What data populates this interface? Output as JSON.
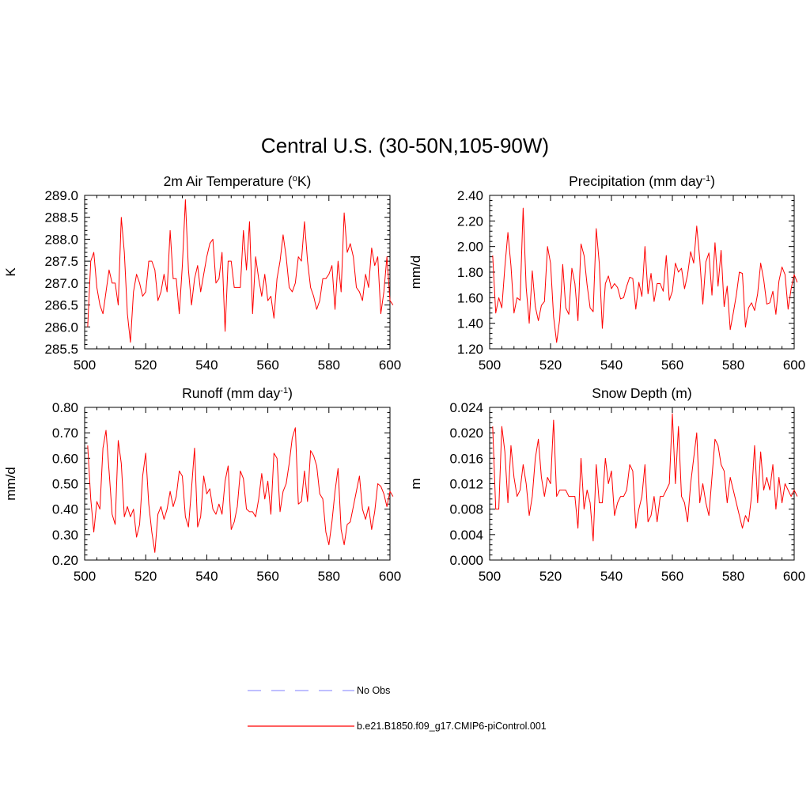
{
  "title": "Central U.S. (30-50N,105-90W)",
  "colors": {
    "model_line": "#ff0000",
    "obs_line": "#9999ff",
    "axis": "#000000"
  },
  "legend": {
    "placement": "bottom-center",
    "entries": [
      {
        "label": "No Obs",
        "style": "dashed",
        "color": "#9999ff"
      },
      {
        "label": "b.e21.B1850.f09_g17.CMIP6-piControl.001",
        "style": "solid",
        "color": "#ff0000"
      }
    ]
  },
  "chart_data": [
    {
      "type": "line",
      "title": "2m Air Temperature",
      "title_unit_base": "K",
      "title_unit_sup": "o",
      "title_unit_prefix": " (",
      "title_unit_suffix": ")",
      "xlabel": "",
      "ylabel": "K",
      "xlim": [
        500,
        600
      ],
      "ylim": [
        285.5,
        289.0
      ],
      "xticks": [
        500,
        520,
        540,
        560,
        580,
        600
      ],
      "yticks": [
        285.5,
        286.0,
        286.5,
        287.0,
        287.5,
        288.0,
        288.5,
        289.0
      ],
      "ytick_labels": [
        "285.5",
        "286.0",
        "286.5",
        "287.0",
        "287.5",
        "288.0",
        "288.5",
        "289.0"
      ],
      "series": [
        {
          "name": "b.e21.B1850.f09_g17.CMIP6-piControl.001",
          "x_start": 501,
          "values": [
            286.0,
            287.5,
            287.7,
            286.9,
            286.5,
            286.3,
            286.8,
            287.3,
            287.0,
            287.0,
            286.5,
            288.5,
            287.7,
            286.3,
            285.65,
            286.8,
            287.2,
            287.0,
            286.7,
            286.8,
            287.5,
            287.5,
            287.3,
            286.6,
            286.8,
            287.2,
            286.8,
            288.2,
            287.1,
            287.1,
            286.3,
            287.4,
            288.9,
            287.3,
            286.5,
            287.1,
            287.4,
            286.8,
            287.2,
            287.6,
            287.9,
            288.0,
            287.0,
            287.1,
            287.7,
            285.9,
            287.5,
            287.5,
            286.9,
            286.9,
            286.9,
            288.2,
            287.3,
            288.4,
            286.3,
            287.6,
            287.1,
            286.7,
            287.2,
            286.6,
            286.7,
            286.2,
            287.1,
            287.5,
            288.1,
            287.6,
            286.9,
            286.8,
            287.0,
            287.6,
            287.5,
            288.4,
            287.5,
            286.9,
            286.7,
            286.4,
            286.6,
            287.1,
            287.1,
            287.2,
            287.4,
            286.4,
            287.5,
            286.8,
            288.6,
            287.7,
            287.9,
            287.6,
            286.9,
            286.8,
            286.6,
            287.2,
            286.9,
            287.8,
            287.4,
            287.6,
            286.3,
            286.8,
            287.6,
            286.6,
            286.5
          ]
        }
      ]
    },
    {
      "type": "line",
      "title": "Precipitation",
      "title_unit_base": "mm day",
      "title_unit_sup": "-1",
      "title_unit_prefix": " (",
      "title_unit_suffix": ")",
      "xlabel": "",
      "ylabel": "mm/d",
      "xlim": [
        500,
        600
      ],
      "ylim": [
        1.2,
        2.4
      ],
      "xticks": [
        500,
        520,
        540,
        560,
        580,
        600
      ],
      "yticks": [
        1.2,
        1.4,
        1.6,
        1.8,
        2.0,
        2.2,
        2.4
      ],
      "ytick_labels": [
        "1.20",
        "1.40",
        "1.60",
        "1.80",
        "2.00",
        "2.20",
        "2.40"
      ],
      "series": [
        {
          "name": "b.e21.B1850.f09_g17.CMIP6-piControl.001",
          "x_start": 501,
          "values": [
            1.93,
            1.48,
            1.6,
            1.52,
            1.84,
            2.11,
            1.85,
            1.48,
            1.6,
            1.58,
            2.3,
            1.68,
            1.4,
            1.81,
            1.53,
            1.42,
            1.54,
            1.57,
            2.0,
            1.87,
            1.45,
            1.25,
            1.43,
            1.86,
            1.52,
            1.47,
            1.83,
            1.71,
            1.42,
            2.02,
            1.93,
            1.7,
            1.52,
            1.49,
            2.14,
            1.87,
            1.36,
            1.71,
            1.77,
            1.67,
            1.71,
            1.68,
            1.59,
            1.6,
            1.69,
            1.76,
            1.75,
            1.51,
            1.72,
            1.61,
            2.0,
            1.63,
            1.79,
            1.57,
            1.71,
            1.71,
            1.65,
            1.93,
            1.58,
            1.65,
            1.87,
            1.8,
            1.83,
            1.67,
            1.78,
            1.96,
            1.87,
            2.16,
            1.9,
            1.55,
            1.88,
            1.95,
            1.62,
            2.03,
            1.69,
            1.97,
            1.53,
            1.69,
            1.35,
            1.48,
            1.62,
            1.8,
            1.79,
            1.37,
            1.52,
            1.56,
            1.5,
            1.63,
            1.87,
            1.74,
            1.55,
            1.56,
            1.65,
            1.47,
            1.73,
            1.84,
            1.78,
            1.51,
            1.67,
            1.78,
            1.72
          ]
        }
      ]
    },
    {
      "type": "line",
      "title": "Runoff",
      "title_unit_base": "mm day",
      "title_unit_sup": "-1",
      "title_unit_prefix": " (",
      "title_unit_suffix": ")",
      "xlabel": "",
      "ylabel": "mm/d",
      "xlim": [
        500,
        600
      ],
      "ylim": [
        0.2,
        0.8
      ],
      "xticks": [
        500,
        520,
        540,
        560,
        580,
        600
      ],
      "yticks": [
        0.2,
        0.3,
        0.4,
        0.5,
        0.6,
        0.7,
        0.8
      ],
      "ytick_labels": [
        "0.20",
        "0.30",
        "0.40",
        "0.50",
        "0.60",
        "0.70",
        "0.80"
      ],
      "series": [
        {
          "name": "b.e21.B1850.f09_g17.CMIP6-piControl.001",
          "x_start": 501,
          "values": [
            0.65,
            0.44,
            0.31,
            0.43,
            0.4,
            0.64,
            0.71,
            0.55,
            0.38,
            0.34,
            0.67,
            0.58,
            0.37,
            0.41,
            0.37,
            0.4,
            0.29,
            0.34,
            0.53,
            0.62,
            0.42,
            0.31,
            0.23,
            0.38,
            0.41,
            0.36,
            0.4,
            0.47,
            0.41,
            0.45,
            0.55,
            0.53,
            0.37,
            0.33,
            0.48,
            0.64,
            0.33,
            0.37,
            0.53,
            0.46,
            0.48,
            0.4,
            0.38,
            0.42,
            0.38,
            0.51,
            0.57,
            0.32,
            0.35,
            0.41,
            0.55,
            0.52,
            0.4,
            0.39,
            0.39,
            0.37,
            0.44,
            0.54,
            0.44,
            0.51,
            0.38,
            0.62,
            0.6,
            0.39,
            0.47,
            0.5,
            0.58,
            0.68,
            0.72,
            0.42,
            0.43,
            0.55,
            0.43,
            0.63,
            0.61,
            0.57,
            0.46,
            0.44,
            0.31,
            0.26,
            0.35,
            0.47,
            0.56,
            0.32,
            0.26,
            0.34,
            0.35,
            0.41,
            0.47,
            0.53,
            0.4,
            0.36,
            0.41,
            0.32,
            0.39,
            0.5,
            0.49,
            0.46,
            0.41,
            0.47,
            0.45
          ]
        }
      ]
    },
    {
      "type": "line",
      "title": "Snow Depth (m)",
      "title_unit_base": "",
      "title_unit_sup": "",
      "title_unit_prefix": "",
      "title_unit_suffix": "",
      "xlabel": "",
      "ylabel": "m",
      "xlim": [
        500,
        600
      ],
      "ylim": [
        0.0,
        0.024
      ],
      "xticks": [
        500,
        520,
        540,
        560,
        580,
        600
      ],
      "yticks": [
        0.0,
        0.004,
        0.008,
        0.012,
        0.016,
        0.02,
        0.024
      ],
      "ytick_labels": [
        "0.000",
        "0.004",
        "0.008",
        "0.012",
        "0.016",
        "0.020",
        "0.024"
      ],
      "series": [
        {
          "name": "b.e21.B1850.f09_g17.CMIP6-piControl.001",
          "x_start": 501,
          "values": [
            0.021,
            0.008,
            0.008,
            0.021,
            0.017,
            0.009,
            0.018,
            0.013,
            0.01,
            0.011,
            0.015,
            0.012,
            0.007,
            0.01,
            0.016,
            0.019,
            0.013,
            0.01,
            0.013,
            0.012,
            0.022,
            0.01,
            0.011,
            0.011,
            0.011,
            0.01,
            0.01,
            0.01,
            0.005,
            0.016,
            0.008,
            0.011,
            0.009,
            0.003,
            0.015,
            0.009,
            0.009,
            0.016,
            0.012,
            0.014,
            0.007,
            0.009,
            0.01,
            0.01,
            0.011,
            0.015,
            0.014,
            0.005,
            0.008,
            0.01,
            0.015,
            0.006,
            0.007,
            0.01,
            0.006,
            0.01,
            0.01,
            0.011,
            0.012,
            0.023,
            0.012,
            0.021,
            0.01,
            0.009,
            0.006,
            0.012,
            0.016,
            0.02,
            0.009,
            0.012,
            0.009,
            0.007,
            0.013,
            0.019,
            0.018,
            0.015,
            0.014,
            0.009,
            0.013,
            0.011,
            0.009,
            0.007,
            0.005,
            0.007,
            0.006,
            0.01,
            0.018,
            0.009,
            0.017,
            0.011,
            0.013,
            0.011,
            0.015,
            0.008,
            0.013,
            0.009,
            0.012,
            0.011,
            0.01,
            0.011,
            0.01
          ]
        }
      ]
    }
  ]
}
